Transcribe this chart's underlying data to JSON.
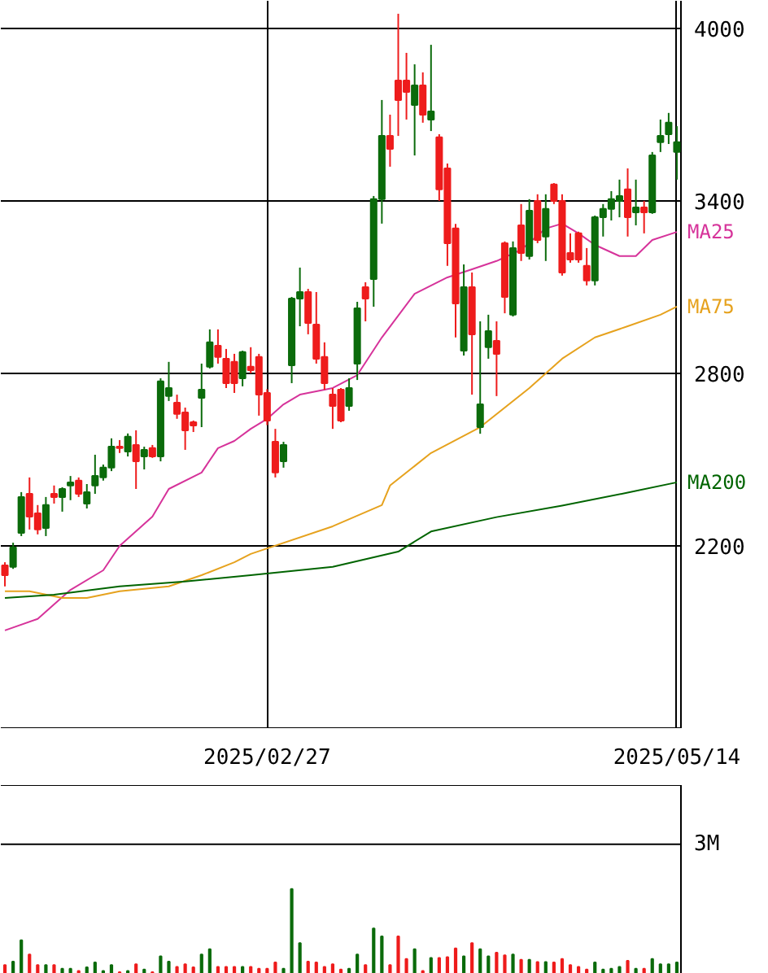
{
  "chart_data": [
    {
      "type": "candlestick",
      "categories": [
        null,
        null,
        null,
        null,
        null,
        null,
        null,
        null,
        null,
        null,
        null,
        null,
        null,
        null,
        null,
        null,
        null,
        null,
        null,
        null,
        null,
        null,
        null,
        null,
        null,
        null,
        null,
        null,
        null,
        null,
        null,
        null,
        "2025/02/27",
        null,
        null,
        null,
        null,
        null,
        null,
        null,
        null,
        null,
        null,
        null,
        null,
        null,
        null,
        null,
        null,
        null,
        null,
        null,
        null,
        null,
        null,
        null,
        null,
        null,
        null,
        null,
        null,
        null,
        null,
        null,
        null,
        null,
        null,
        null,
        null,
        null,
        null,
        null,
        null,
        null,
        null,
        null,
        null,
        null,
        null,
        null,
        null,
        null,
        "2025/05/14"
      ],
      "ohlc": [
        [
          2132,
          2143,
          2059,
          2098
        ],
        [
          2127,
          2211,
          2120,
          2195
        ],
        [
          2245,
          2387,
          2234,
          2370
        ],
        [
          2381,
          2438,
          2257,
          2302
        ],
        [
          2313,
          2342,
          2240,
          2257
        ],
        [
          2262,
          2370,
          2234,
          2342
        ],
        [
          2381,
          2410,
          2347,
          2370
        ],
        [
          2370,
          2404,
          2319,
          2398
        ],
        [
          2410,
          2443,
          2359,
          2421
        ],
        [
          2427,
          2438,
          2370,
          2381
        ],
        [
          2347,
          2415,
          2330,
          2387
        ],
        [
          2410,
          2517,
          2381,
          2443
        ],
        [
          2438,
          2483,
          2427,
          2472
        ],
        [
          2472,
          2574,
          2460,
          2545
        ],
        [
          2545,
          2568,
          2523,
          2540
        ],
        [
          2528,
          2591,
          2511,
          2580
        ],
        [
          2551,
          2602,
          2398,
          2494
        ],
        [
          2511,
          2545,
          2466,
          2534
        ],
        [
          2540,
          2551,
          2506,
          2511
        ],
        [
          2511,
          2783,
          2494,
          2772
        ],
        [
          2721,
          2840,
          2704,
          2749
        ],
        [
          2698,
          2726,
          2642,
          2659
        ],
        [
          2664,
          2681,
          2534,
          2602
        ],
        [
          2630,
          2636,
          2596,
          2619
        ],
        [
          2715,
          2834,
          2613,
          2743
        ],
        [
          2823,
          2953,
          2817,
          2908
        ],
        [
          2896,
          2953,
          2834,
          2857
        ],
        [
          2851,
          2885,
          2749,
          2766
        ],
        [
          2840,
          2868,
          2732,
          2766
        ],
        [
          2783,
          2879,
          2755,
          2874
        ],
        [
          2823,
          2891,
          2800,
          2811
        ],
        [
          2857,
          2868,
          2653,
          2726
        ],
        [
          2732,
          2745,
          2620,
          2636
        ],
        [
          2562,
          2607,
          2438,
          2455
        ],
        [
          2494,
          2562,
          2472,
          2551
        ],
        [
          2828,
          3066,
          2766,
          3060
        ],
        [
          3060,
          3168,
          2964,
          3083
        ],
        [
          3083,
          3094,
          2936,
          2975
        ],
        [
          2970,
          3083,
          2834,
          2851
        ],
        [
          2857,
          2908,
          2743,
          2766
        ],
        [
          2726,
          2749,
          2607,
          2687
        ],
        [
          2743,
          2749,
          2630,
          2636
        ],
        [
          2687,
          2783,
          2670,
          2749
        ],
        [
          2834,
          3049,
          2777,
          3026
        ],
        [
          3100,
          3117,
          2981,
          3060
        ],
        [
          3128,
          3417,
          3032,
          3406
        ],
        [
          3406,
          3751,
          3321,
          3626
        ],
        [
          3626,
          3700,
          3519,
          3581
        ],
        [
          3819,
          4051,
          3626,
          3751
        ],
        [
          3819,
          3915,
          3683,
          3779
        ],
        [
          3734,
          3875,
          3558,
          3802
        ],
        [
          3802,
          3847,
          3672,
          3700
        ],
        [
          3683,
          3943,
          3643,
          3711
        ],
        [
          3621,
          3632,
          3400,
          3440
        ],
        [
          3513,
          3530,
          3174,
          3253
        ],
        [
          3304,
          3320,
          2925,
          3043
        ],
        [
          2879,
          3179,
          2862,
          3100
        ],
        [
          3100,
          3151,
          2726,
          2936
        ],
        [
          2613,
          2981,
          2590,
          2692
        ],
        [
          2891,
          3004,
          2851,
          2947
        ],
        [
          2913,
          2981,
          2721,
          2868
        ],
        [
          3253,
          3259,
          3009,
          3066
        ],
        [
          3004,
          3259,
          2998,
          3236
        ],
        [
          3315,
          3389,
          3191,
          3219
        ],
        [
          3208,
          3406,
          3196,
          3366
        ],
        [
          3400,
          3423,
          3253,
          3264
        ],
        [
          3276,
          3423,
          3191,
          3372
        ],
        [
          3457,
          3462,
          3389,
          3400
        ],
        [
          3400,
          3423,
          3140,
          3151
        ],
        [
          3219,
          3287,
          3185,
          3196
        ],
        [
          3287,
          3293,
          3185,
          3196
        ],
        [
          3174,
          3236,
          3106,
          3123
        ],
        [
          3123,
          3349,
          3106,
          3343
        ],
        [
          3343,
          3389,
          3276,
          3372
        ],
        [
          3372,
          3434,
          3332,
          3406
        ],
        [
          3400,
          3474,
          3343,
          3417
        ],
        [
          3440,
          3513,
          3276,
          3343
        ],
        [
          3360,
          3474,
          3315,
          3377
        ],
        [
          3377,
          3400,
          3287,
          3360
        ],
        [
          3360,
          3570,
          3355,
          3558
        ],
        [
          3604,
          3683,
          3570,
          3626
        ],
        [
          3632,
          3706,
          3598,
          3672
        ],
        [
          3570,
          3660,
          3474,
          3604
        ]
      ],
      "colors": [
        "#ee1c1c",
        "#0b6b0b",
        "#0b6b0b",
        "#ee1c1c",
        "#ee1c1c",
        "#0b6b0b",
        "#ee1c1c",
        "#0b6b0b",
        "#0b6b0b",
        "#ee1c1c",
        "#0b6b0b",
        "#0b6b0b",
        "#0b6b0b",
        "#0b6b0b",
        "#ee1c1c",
        "#0b6b0b",
        "#ee1c1c",
        "#0b6b0b",
        "#ee1c1c",
        "#0b6b0b",
        "#0b6b0b",
        "#ee1c1c",
        "#ee1c1c",
        "#ee1c1c",
        "#0b6b0b",
        "#0b6b0b",
        "#ee1c1c",
        "#ee1c1c",
        "#ee1c1c",
        "#0b6b0b",
        "#ee1c1c",
        "#ee1c1c",
        "#ee1c1c",
        "#ee1c1c",
        "#0b6b0b",
        "#0b6b0b",
        "#0b6b0b",
        "#ee1c1c",
        "#ee1c1c",
        "#ee1c1c",
        "#ee1c1c",
        "#ee1c1c",
        "#0b6b0b",
        "#0b6b0b",
        "#ee1c1c",
        "#0b6b0b",
        "#0b6b0b",
        "#ee1c1c",
        "#ee1c1c",
        "#ee1c1c",
        "#0b6b0b",
        "#ee1c1c",
        "#0b6b0b",
        "#ee1c1c",
        "#ee1c1c",
        "#ee1c1c",
        "#0b6b0b",
        "#ee1c1c",
        "#0b6b0b",
        "#0b6b0b",
        "#ee1c1c",
        "#ee1c1c",
        "#0b6b0b",
        "#ee1c1c",
        "#0b6b0b",
        "#ee1c1c",
        "#0b6b0b",
        "#ee1c1c",
        "#ee1c1c",
        "#ee1c1c",
        "#ee1c1c",
        "#ee1c1c",
        "#0b6b0b",
        "#0b6b0b",
        "#0b6b0b",
        "#0b6b0b",
        "#ee1c1c",
        "#0b6b0b",
        "#ee1c1c",
        "#0b6b0b",
        "#0b6b0b",
        "#0b6b0b",
        "#0b6b0b"
      ],
      "series": [
        {
          "name": "MA25",
          "type": "line",
          "color": "#d6339a",
          "values": [
            1906,
            null,
            null,
            null,
            1946,
            null,
            null,
            null,
            2047,
            null,
            null,
            null,
            2115,
            null,
            2200,
            null,
            null,
            null,
            2302,
            null,
            2398,
            null,
            null,
            null,
            2455,
            null,
            2540,
            null,
            2565,
            null,
            2607,
            null,
            2642,
            null,
            2692,
            null,
            2726,
            null,
            null,
            null,
            2749,
            null,
            null,
            2794,
            null,
            null,
            2925,
            null,
            null,
            null,
            3077,
            null,
            null,
            null,
            3134,
            null,
            null,
            3162,
            null,
            null,
            3191,
            null,
            null,
            3230,
            null,
            null,
            3304,
            null,
            3321,
            null,
            3287,
            null,
            3247,
            null,
            null,
            3208,
            null,
            3208,
            null,
            3264,
            null,
            null,
            3292
          ]
        },
        {
          "name": "MA75",
          "type": "line",
          "color": "#e6a21e",
          "values": [
            2042,
            null,
            null,
            2042,
            null,
            null,
            null,
            2019,
            null,
            null,
            2019,
            null,
            null,
            null,
            2042,
            null,
            null,
            null,
            null,
            null,
            2059,
            null,
            null,
            null,
            2098,
            null,
            null,
            null,
            2143,
            null,
            2172,
            null,
            null,
            null,
            null,
            null,
            null,
            null,
            null,
            null,
            2268,
            null,
            null,
            null,
            null,
            null,
            2342,
            2410,
            null,
            null,
            null,
            null,
            2523,
            null,
            null,
            null,
            null,
            null,
            2613,
            null,
            null,
            null,
            null,
            null,
            2749,
            null,
            null,
            null,
            2851,
            null,
            null,
            null,
            2925,
            null,
            null,
            null,
            2964,
            null,
            null,
            null,
            3004,
            null,
            3032
          ]
        },
        {
          "name": "MA200",
          "type": "line",
          "color": "#006400",
          "values": [
            2019,
            null,
            null,
            null,
            null,
            null,
            2030,
            null,
            null,
            null,
            null,
            null,
            null,
            null,
            2059,
            null,
            null,
            null,
            null,
            null,
            null,
            null,
            2076,
            null,
            null,
            null,
            null,
            null,
            null,
            null,
            2098,
            null,
            null,
            null,
            null,
            null,
            null,
            null,
            null,
            null,
            2127,
            null,
            null,
            null,
            null,
            null,
            null,
            null,
            2180,
            null,
            null,
            null,
            2250,
            null,
            null,
            null,
            null,
            null,
            null,
            null,
            2300,
            null,
            null,
            null,
            null,
            null,
            null,
            null,
            2340,
            null,
            null,
            null,
            null,
            null,
            null,
            null,
            2385,
            null,
            null,
            null,
            null,
            null,
            2421
          ]
        }
      ],
      "ylim": [
        1566,
        4096
      ],
      "yticks": [
        2200,
        2800,
        3400,
        4000
      ],
      "grid": true
    },
    {
      "type": "bar",
      "categories": [
        null,
        null,
        null,
        null,
        null,
        null,
        null,
        null,
        null,
        null,
        null,
        null,
        null,
        null,
        null,
        null,
        null,
        null,
        null,
        null,
        null,
        null,
        null,
        null,
        null,
        null,
        null,
        null,
        null,
        null,
        null,
        null,
        "2025/02/27",
        null,
        null,
        null,
        null,
        null,
        null,
        null,
        null,
        null,
        null,
        null,
        null,
        null,
        null,
        null,
        null,
        null,
        null,
        null,
        null,
        null,
        null,
        null,
        null,
        null,
        null,
        null,
        null,
        null,
        null,
        null,
        null,
        null,
        null,
        null,
        null,
        null,
        null,
        null,
        null,
        null,
        null,
        null,
        null,
        null,
        null,
        null,
        null,
        null,
        "2025/05/14"
      ],
      "values": [
        0.27,
        0.35,
        0.83,
        0.51,
        0.27,
        0.27,
        0.27,
        0.19,
        0.19,
        0.14,
        0.22,
        0.33,
        0.14,
        0.27,
        0.11,
        0.14,
        0.29,
        0.17,
        0.11,
        0.47,
        0.35,
        0.23,
        0.29,
        0.22,
        0.51,
        0.63,
        0.23,
        0.23,
        0.23,
        0.23,
        0.23,
        0.19,
        0.19,
        0.33,
        0.19,
        1.99,
        0.77,
        0.35,
        0.33,
        0.23,
        0.29,
        0.17,
        0.19,
        0.51,
        0.27,
        1.1,
        0.92,
        0.27,
        0.92,
        0.41,
        0.63,
        0.14,
        0.43,
        0.43,
        0.45,
        0.65,
        0.47,
        0.77,
        0.63,
        0.47,
        0.55,
        0.49,
        0.51,
        0.39,
        0.39,
        0.34,
        0.34,
        0.33,
        0.41,
        0.27,
        0.23,
        0.17,
        0.33,
        0.17,
        0.19,
        0.23,
        0.37,
        0.19,
        0.19,
        0.41,
        0.29,
        0.29,
        0.33
      ],
      "colors": [
        "#ee1c1c",
        "#0b6b0b",
        "#0b6b0b",
        "#ee1c1c",
        "#ee1c1c",
        "#0b6b0b",
        "#ee1c1c",
        "#0b6b0b",
        "#0b6b0b",
        "#ee1c1c",
        "#0b6b0b",
        "#0b6b0b",
        "#0b6b0b",
        "#0b6b0b",
        "#ee1c1c",
        "#0b6b0b",
        "#ee1c1c",
        "#0b6b0b",
        "#ee1c1c",
        "#0b6b0b",
        "#0b6b0b",
        "#ee1c1c",
        "#ee1c1c",
        "#ee1c1c",
        "#0b6b0b",
        "#0b6b0b",
        "#ee1c1c",
        "#ee1c1c",
        "#ee1c1c",
        "#0b6b0b",
        "#ee1c1c",
        "#ee1c1c",
        "#ee1c1c",
        "#ee1c1c",
        "#0b6b0b",
        "#0b6b0b",
        "#0b6b0b",
        "#ee1c1c",
        "#ee1c1c",
        "#ee1c1c",
        "#ee1c1c",
        "#ee1c1c",
        "#0b6b0b",
        "#0b6b0b",
        "#ee1c1c",
        "#0b6b0b",
        "#0b6b0b",
        "#ee1c1c",
        "#ee1c1c",
        "#ee1c1c",
        "#0b6b0b",
        "#ee1c1c",
        "#0b6b0b",
        "#ee1c1c",
        "#ee1c1c",
        "#ee1c1c",
        "#0b6b0b",
        "#ee1c1c",
        "#0b6b0b",
        "#0b6b0b",
        "#ee1c1c",
        "#ee1c1c",
        "#0b6b0b",
        "#ee1c1c",
        "#0b6b0b",
        "#ee1c1c",
        "#0b6b0b",
        "#ee1c1c",
        "#ee1c1c",
        "#ee1c1c",
        "#ee1c1c",
        "#ee1c1c",
        "#0b6b0b",
        "#0b6b0b",
        "#0b6b0b",
        "#0b6b0b",
        "#ee1c1c",
        "#0b6b0b",
        "#ee1c1c",
        "#0b6b0b",
        "#0b6b0b",
        "#0b6b0b",
        "#0b6b0b"
      ],
      "ylim": [
        0,
        4.34
      ],
      "yticks": [
        {
          "value": 3,
          "label": "3M"
        }
      ],
      "grid": "y",
      "tick_labels": "y"
    }
  ]
}
